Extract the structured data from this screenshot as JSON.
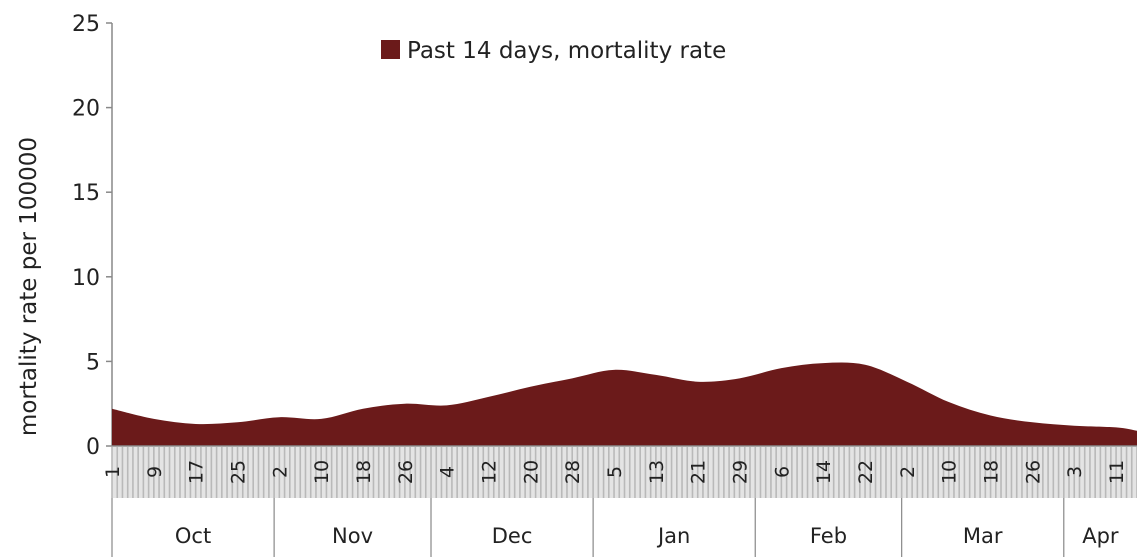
{
  "chart_data": {
    "type": "area",
    "title": "",
    "xlabel": "",
    "ylabel": "mortality rate per 100000",
    "ylim": [
      0,
      25
    ],
    "yticks": [
      "0",
      "5",
      "10",
      "15",
      "20",
      "25"
    ],
    "grid": false,
    "legend_position": "top-center",
    "colors": {
      "area": "#6b1a1a",
      "axis": "#888888",
      "tick_fill": "#b9b9b9"
    },
    "series": [
      {
        "name": "Past 14 days, mortality rate",
        "x": [
          "Oct 1",
          "Oct 9",
          "Oct 17",
          "Oct 25",
          "Nov 2",
          "Nov 10",
          "Nov 18",
          "Nov 26",
          "Dec 4",
          "Dec 12",
          "Dec 20",
          "Dec 28",
          "Jan 5",
          "Jan 13",
          "Jan 21",
          "Jan 29",
          "Feb 6",
          "Feb 14",
          "Feb 22",
          "Mar 2",
          "Mar 10",
          "Mar 18",
          "Mar 26",
          "Apr 3",
          "Apr 11",
          "Apr 15"
        ],
        "values": [
          2.2,
          1.6,
          1.3,
          1.4,
          1.7,
          1.6,
          2.2,
          2.5,
          2.4,
          2.9,
          3.5,
          4.0,
          4.5,
          4.2,
          3.8,
          4.0,
          4.6,
          4.9,
          4.8,
          3.8,
          2.6,
          1.8,
          1.4,
          1.2,
          1.1,
          0.9
        ]
      }
    ],
    "day_labels": [
      {
        "label": "1",
        "date": "Oct 1"
      },
      {
        "label": "9",
        "date": "Oct 9"
      },
      {
        "label": "17",
        "date": "Oct 17"
      },
      {
        "label": "25",
        "date": "Oct 25"
      },
      {
        "label": "2",
        "date": "Nov 2"
      },
      {
        "label": "10",
        "date": "Nov 10"
      },
      {
        "label": "18",
        "date": "Nov 18"
      },
      {
        "label": "26",
        "date": "Nov 26"
      },
      {
        "label": "4",
        "date": "Dec 4"
      },
      {
        "label": "12",
        "date": "Dec 12"
      },
      {
        "label": "20",
        "date": "Dec 20"
      },
      {
        "label": "28",
        "date": "Dec 28"
      },
      {
        "label": "5",
        "date": "Jan 5"
      },
      {
        "label": "13",
        "date": "Jan 13"
      },
      {
        "label": "21",
        "date": "Jan 21"
      },
      {
        "label": "29",
        "date": "Jan 29"
      },
      {
        "label": "6",
        "date": "Feb 6"
      },
      {
        "label": "14",
        "date": "Feb 14"
      },
      {
        "label": "22",
        "date": "Feb 22"
      },
      {
        "label": "2",
        "date": "Mar 2"
      },
      {
        "label": "10",
        "date": "Mar 10"
      },
      {
        "label": "18",
        "date": "Mar 18"
      },
      {
        "label": "26",
        "date": "Mar 26"
      },
      {
        "label": "3",
        "date": "Apr 3"
      },
      {
        "label": "11",
        "date": "Apr 11"
      }
    ],
    "months": [
      {
        "label": "Oct",
        "start": "Oct 1",
        "end": "Nov 1"
      },
      {
        "label": "Nov",
        "start": "Nov 1",
        "end": "Dec 1"
      },
      {
        "label": "Dec",
        "start": "Dec 1",
        "end": "Jan 1"
      },
      {
        "label": "Jan",
        "start": "Jan 1",
        "end": "Feb 1"
      },
      {
        "label": "Feb",
        "start": "Feb 1",
        "end": "Mar 1"
      },
      {
        "label": "Mar",
        "start": "Mar 1",
        "end": "Apr 1"
      },
      {
        "label": "Apr",
        "start": "Apr 1",
        "end": "Apr 15"
      }
    ]
  }
}
